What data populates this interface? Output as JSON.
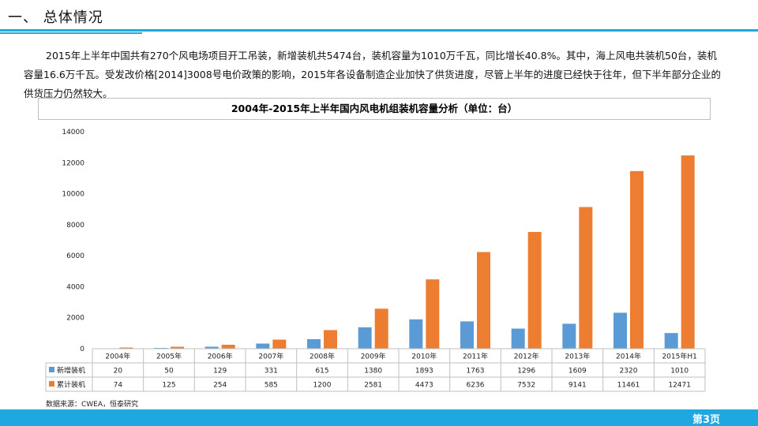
{
  "header": {
    "title": "一、 总体情况"
  },
  "intro": "2015年上半年中国共有270个风电场项目开工吊装，新增装机共5474台，装机容量为1010万千瓦，同比增长40.8%。其中，海上风电共装机50台，装机容量16.6万千瓦。受发改价格[2014]3008号电价政策的影响，2015年各设备制造企业加快了供货进度，尽管上半年的进度已经快于往年，但下半年部分企业的供货压力仍然较大。",
  "source": "数据来源：CWEA，恒泰研究",
  "page": "第3页",
  "colors": {
    "accent": "#1fa7e0",
    "series_new": "#5b9bd5",
    "series_total": "#ed7d31"
  },
  "chart_data": {
    "type": "bar",
    "title": "2004年-2015年上半年国内风电机组装机容量分析（单位：台）",
    "categories": [
      "2004年",
      "2005年",
      "2006年",
      "2007年",
      "2008年",
      "2009年",
      "2010年",
      "2011年",
      "2012年",
      "2013年",
      "2014年",
      "2015年H1"
    ],
    "series": [
      {
        "name": "新增装机",
        "values": [
          20,
          50,
          129,
          331,
          615,
          1380,
          1893,
          1763,
          1296,
          1609,
          2320,
          1010
        ]
      },
      {
        "name": "累计装机",
        "values": [
          74,
          125,
          254,
          585,
          1200,
          2581,
          4473,
          6236,
          7532,
          9141,
          11461,
          12471
        ]
      }
    ],
    "ylim": [
      0,
      14000
    ],
    "yticks": [
      0,
      2000,
      4000,
      6000,
      8000,
      10000,
      12000,
      14000
    ],
    "grid": false,
    "legend": "data-table"
  }
}
